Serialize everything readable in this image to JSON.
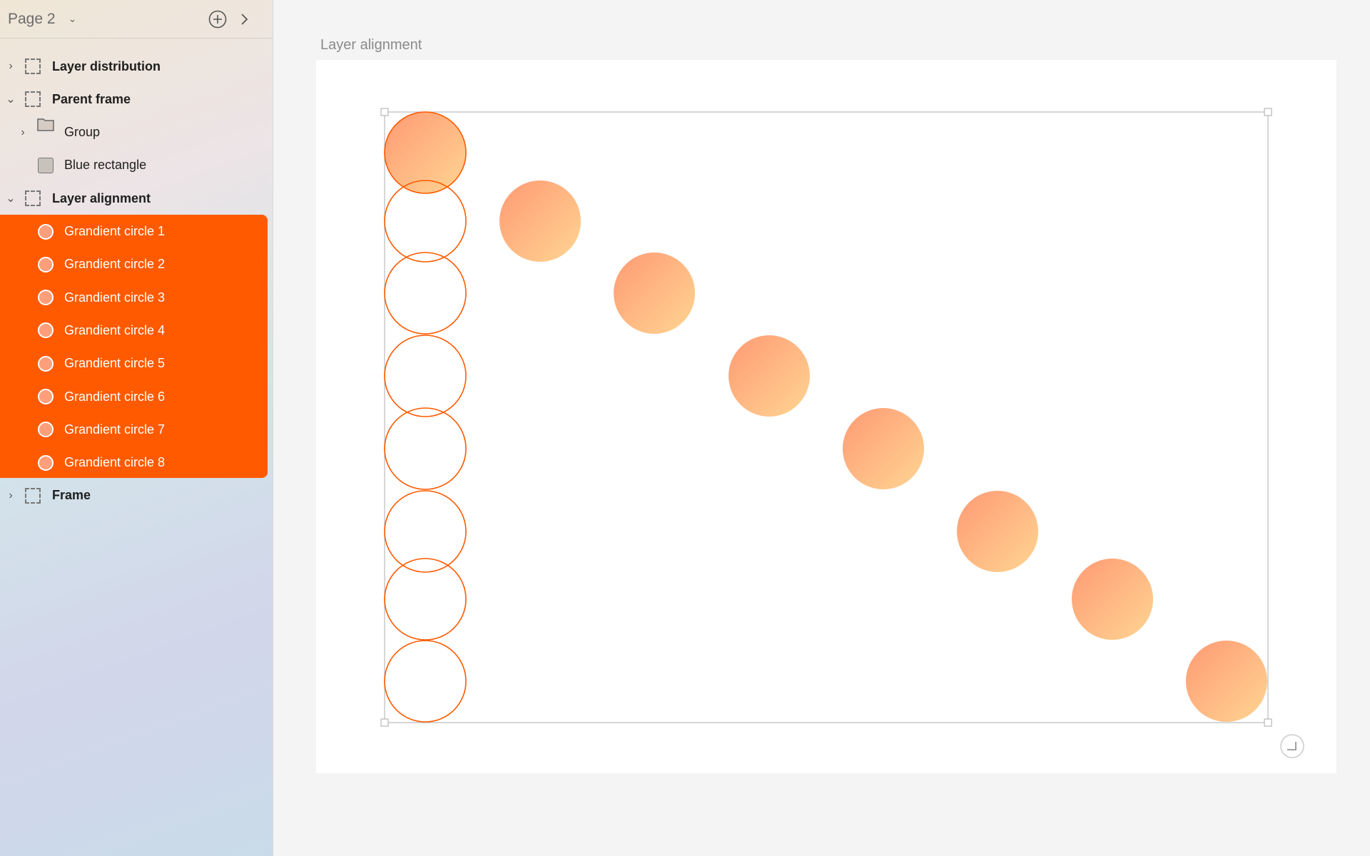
{
  "header": {
    "page": "Page 2",
    "icons": [
      "chevron-down-icon",
      "plus-circle-icon",
      "chevron-right-icon"
    ]
  },
  "layers": [
    {
      "label": "Layer distribution",
      "type": "frame",
      "expanded": false,
      "level": 0
    },
    {
      "label": "Parent frame",
      "type": "frame",
      "expanded": true,
      "level": 0
    },
    {
      "label": "Group",
      "type": "folder",
      "expanded": false,
      "level": 1
    },
    {
      "label": "Blue rectangle",
      "type": "rect",
      "level": 1
    },
    {
      "label": "Layer alignment",
      "type": "frame",
      "expanded": true,
      "level": 0
    },
    {
      "label": "Grandient circle 1",
      "type": "circle",
      "level": 1,
      "selected": true
    },
    {
      "label": "Grandient circle 2",
      "type": "circle",
      "level": 1,
      "selected": true
    },
    {
      "label": "Grandient circle 3",
      "type": "circle",
      "level": 1,
      "selected": true
    },
    {
      "label": "Grandient circle 4",
      "type": "circle",
      "level": 1,
      "selected": true
    },
    {
      "label": "Grandient circle 5",
      "type": "circle",
      "level": 1,
      "selected": true
    },
    {
      "label": "Grandient circle 6",
      "type": "circle",
      "level": 1,
      "selected": true
    },
    {
      "label": "Grandient circle 7",
      "type": "circle",
      "level": 1,
      "selected": true
    },
    {
      "label": "Grandient circle 8",
      "type": "circle",
      "level": 1,
      "selected": true
    },
    {
      "label": "Frame",
      "type": "frame",
      "expanded": false,
      "level": 0
    }
  ],
  "canvas": {
    "frame_label": "Layer alignment",
    "accent": "#ff5a00",
    "gradient": [
      "#ff9a74",
      "#ffd592"
    ]
  }
}
